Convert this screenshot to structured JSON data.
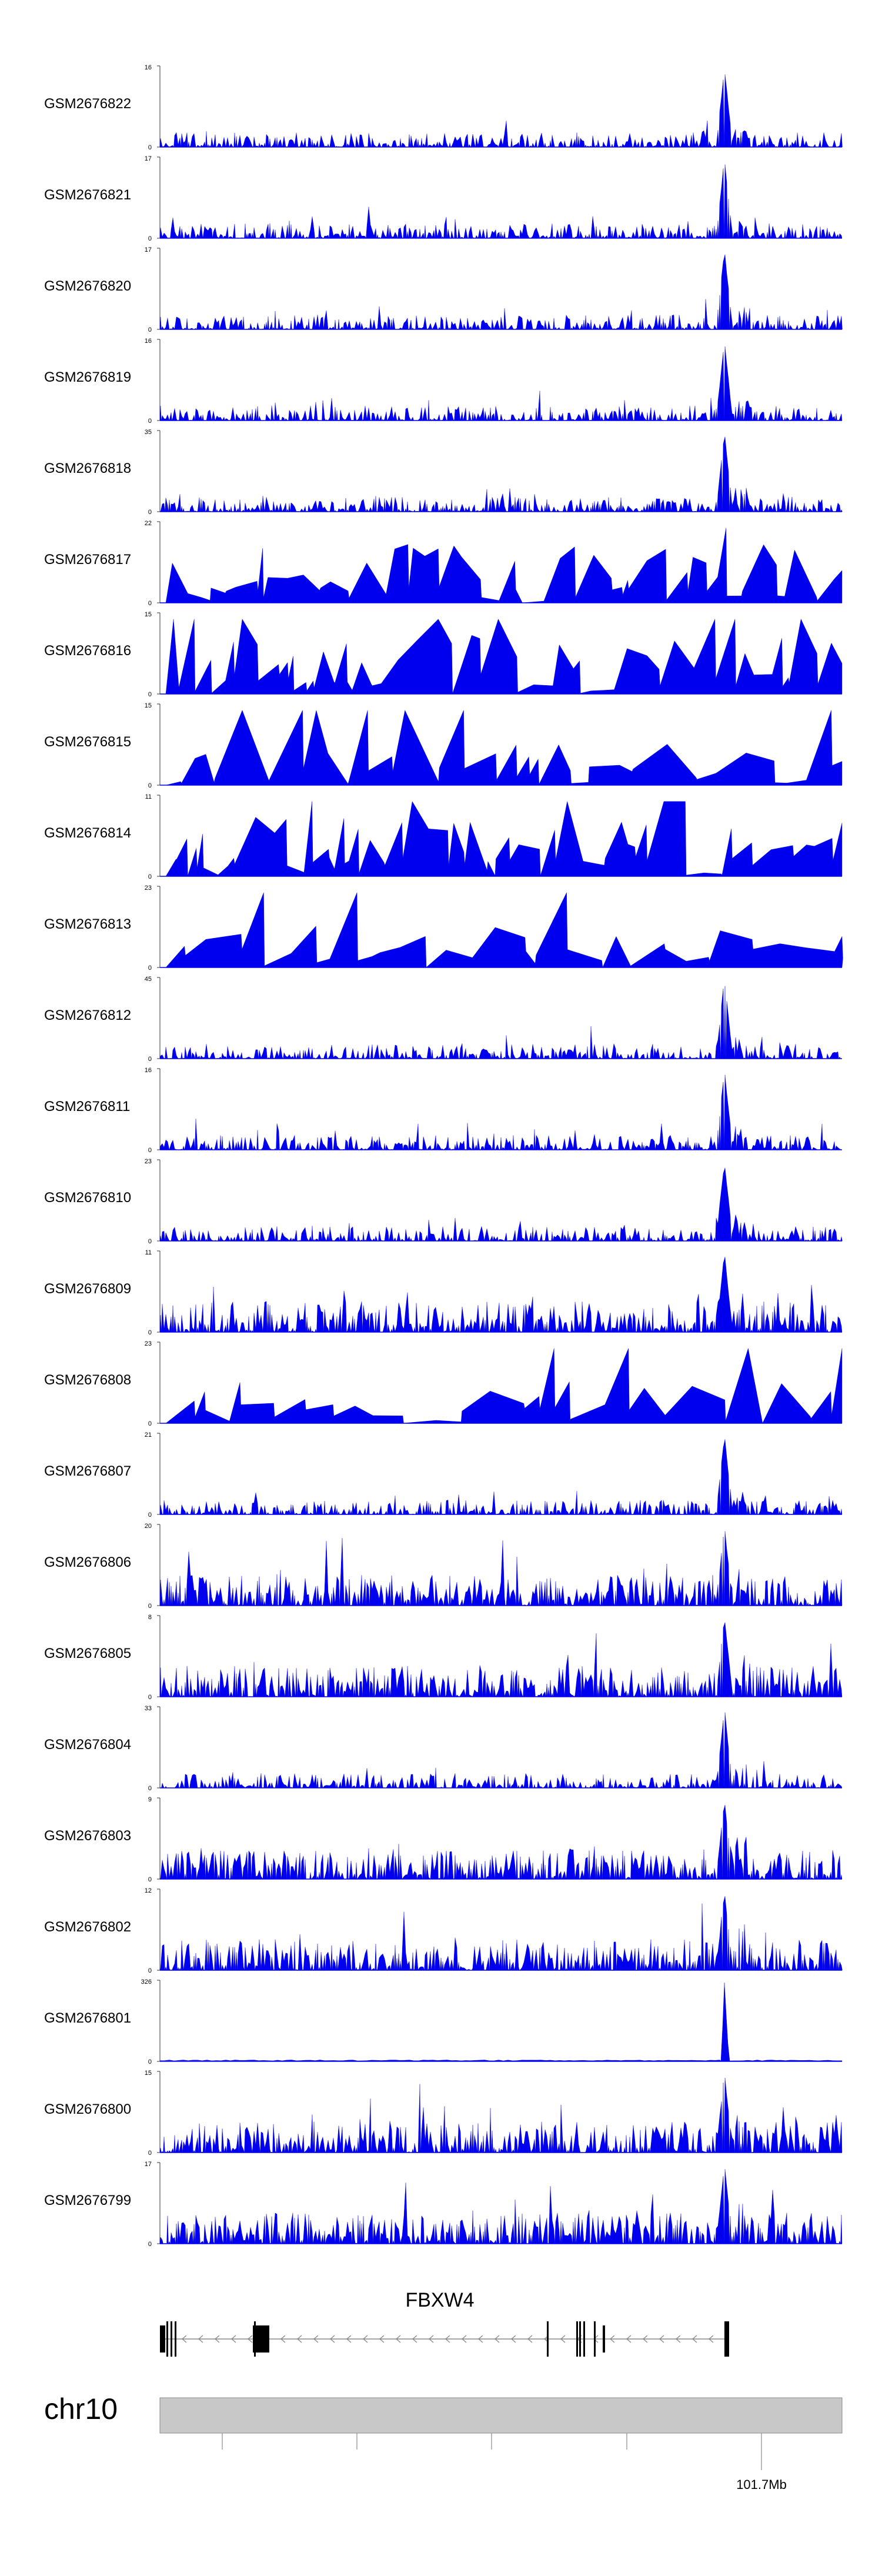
{
  "chart_data": {
    "type": "area",
    "title": "",
    "color_signal": "#0000ee",
    "xlabel": "chr10",
    "x_tick_labels": [
      "101.7Mb"
    ],
    "tracks": [
      {
        "name": "GSM2676822",
        "ymax": "16",
        "ymin": "0",
        "profile": "peak"
      },
      {
        "name": "GSM2676821",
        "ymax": "17",
        "ymin": "0",
        "profile": "peak"
      },
      {
        "name": "GSM2676820",
        "ymax": "17",
        "ymin": "0",
        "profile": "peak"
      },
      {
        "name": "GSM2676819",
        "ymax": "16",
        "ymin": "0",
        "profile": "peak"
      },
      {
        "name": "GSM2676818",
        "ymax": "35",
        "ymin": "0",
        "profile": "peak"
      },
      {
        "name": "GSM2676817",
        "ymax": "22",
        "ymin": "0",
        "profile": "sparse"
      },
      {
        "name": "GSM2676816",
        "ymax": "15",
        "ymin": "0",
        "profile": "sparse"
      },
      {
        "name": "GSM2676815",
        "ymax": "15",
        "ymin": "0",
        "profile": "verysparse"
      },
      {
        "name": "GSM2676814",
        "ymax": "11",
        "ymin": "0",
        "profile": "sparse"
      },
      {
        "name": "GSM2676813",
        "ymax": "23",
        "ymin": "0",
        "profile": "verysparse"
      },
      {
        "name": "GSM2676812",
        "ymax": "45",
        "ymin": "0",
        "profile": "peak"
      },
      {
        "name": "GSM2676811",
        "ymax": "16",
        "ymin": "0",
        "profile": "peak"
      },
      {
        "name": "GSM2676810",
        "ymax": "23",
        "ymin": "0",
        "profile": "peak"
      },
      {
        "name": "GSM2676809",
        "ymax": "11",
        "ymin": "0",
        "profile": "dense"
      },
      {
        "name": "GSM2676808",
        "ymax": "23",
        "ymin": "0",
        "profile": "verysparse"
      },
      {
        "name": "GSM2676807",
        "ymax": "21",
        "ymin": "0",
        "profile": "peak"
      },
      {
        "name": "GSM2676806",
        "ymax": "20",
        "ymin": "0",
        "profile": "dense"
      },
      {
        "name": "GSM2676805",
        "ymax": "8",
        "ymin": "0",
        "profile": "dense"
      },
      {
        "name": "GSM2676804",
        "ymax": "33",
        "ymin": "0",
        "profile": "peak"
      },
      {
        "name": "GSM2676803",
        "ymax": "9",
        "ymin": "0",
        "profile": "dense"
      },
      {
        "name": "GSM2676802",
        "ymax": "12",
        "ymin": "0",
        "profile": "dense"
      },
      {
        "name": "GSM2676801",
        "ymax": "326",
        "ymin": "0",
        "profile": "single"
      },
      {
        "name": "GSM2676800",
        "ymax": "15",
        "ymin": "0",
        "profile": "dense"
      },
      {
        "name": "GSM2676799",
        "ymax": "17",
        "ymin": "0",
        "profile": "dense"
      }
    ],
    "gene": {
      "name": "FBXW4",
      "strand": "-"
    },
    "chromosome": "chr10"
  }
}
